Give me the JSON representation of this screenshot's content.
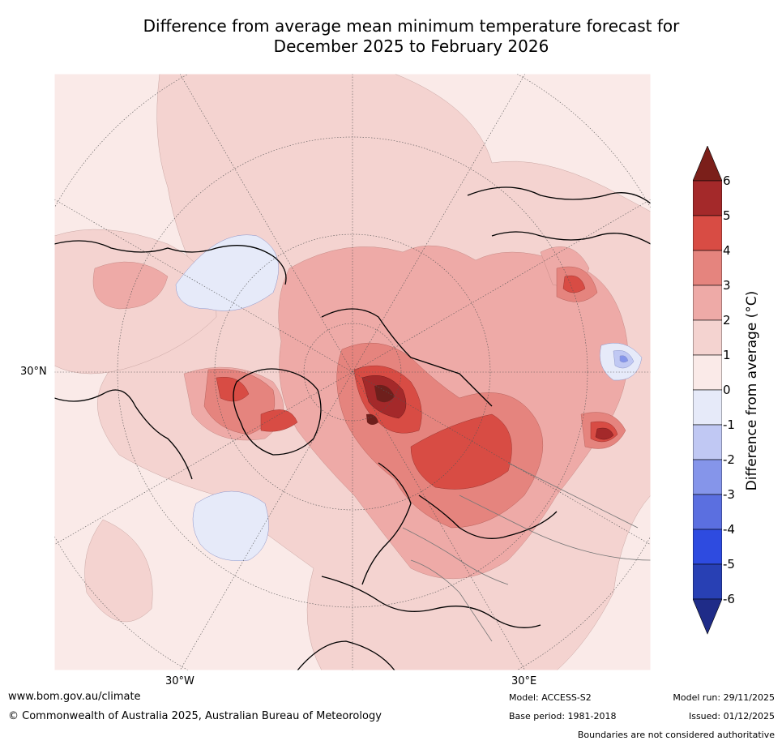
{
  "title_line1": "Difference from average mean minimum temperature forecast for",
  "title_line2": "December 2025 to February 2026",
  "map": {
    "lat_labels": [
      "30°N"
    ],
    "lon_labels": [
      "30°W",
      "30°E"
    ]
  },
  "colorbar": {
    "label": "Difference from average (°C)",
    "ticks": [
      "6",
      "5",
      "4",
      "3",
      "2",
      "1",
      "0",
      "-1",
      "-2",
      "-3",
      "-4",
      "-5",
      "-6"
    ],
    "bins": [
      {
        "range": "5 to 6",
        "color": "#a4292a"
      },
      {
        "range": "4 to 5",
        "color": "#d84c44"
      },
      {
        "range": "3 to 4",
        "color": "#e5847e"
      },
      {
        "range": "2 to 3",
        "color": "#eeaaa7"
      },
      {
        "range": "1 to 2",
        "color": "#f4d3d0"
      },
      {
        "range": "0 to 1",
        "color": "#faeae8"
      },
      {
        "range": "-1 to 0",
        "color": "#e6eaf9"
      },
      {
        "range": "-2 to -1",
        "color": "#c0c8f3"
      },
      {
        "range": "-3 to -2",
        "color": "#8595ea"
      },
      {
        "range": "-4 to -3",
        "color": "#5b6fe0"
      },
      {
        "range": "-5 to -4",
        "color": "#2e4be0"
      },
      {
        "range": "-6 to -5",
        "color": "#2840b4"
      }
    ],
    "over_color": "#7b1f1a",
    "under_color": "#1f2c88"
  },
  "footer": {
    "website": "www.bom.gov.au/climate",
    "copyright": "© Commonwealth of Australia 2025, Australian Bureau of Meteorology",
    "model": "Model: ACCESS-S2",
    "base_period": "Base period: 1981-2018",
    "model_run": "Model run: 29/11/2025",
    "issued": "Issued: 01/12/2025",
    "disclaimer": "Boundaries are not considered authoritative"
  }
}
